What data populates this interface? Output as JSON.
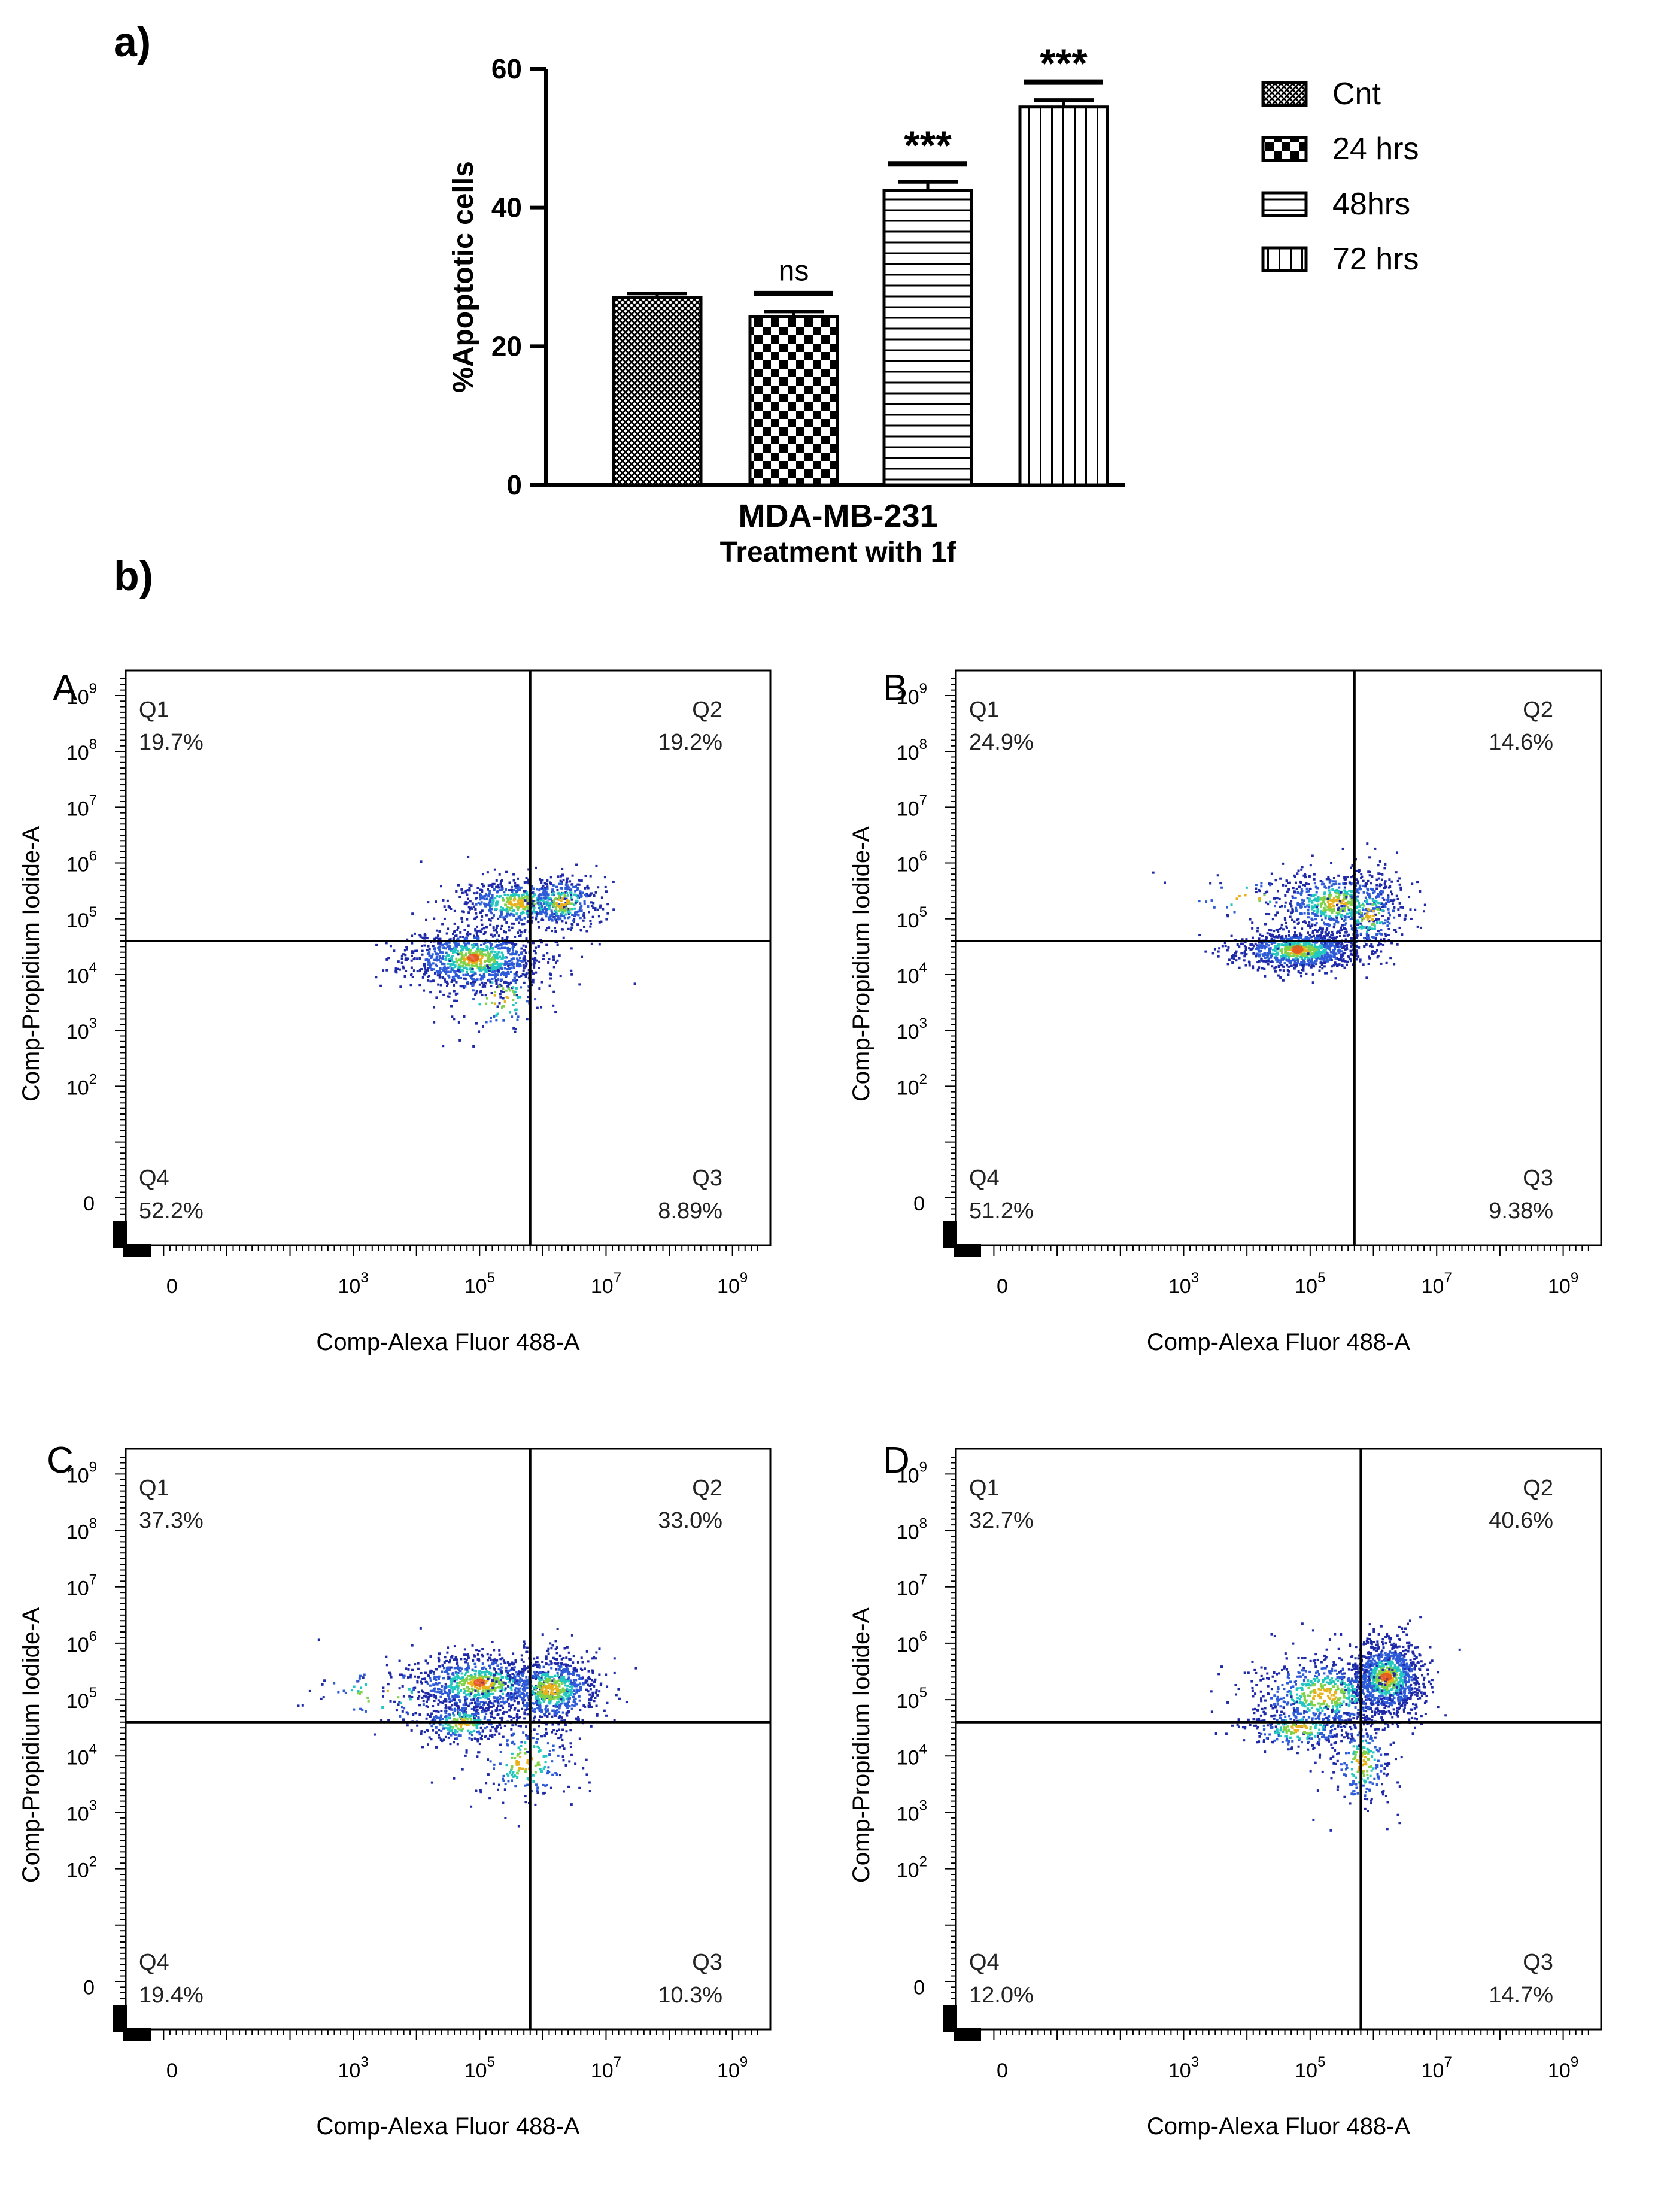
{
  "figure": {
    "panel_a_label": "a)",
    "panel_b_label": "b)",
    "colors": {
      "ink": "#000000",
      "background": "#ffffff"
    }
  },
  "chart_data": [
    {
      "type": "bar",
      "panel": "a)",
      "categories": [
        "Cnt",
        "24 hrs",
        "48hrs",
        "72 hrs"
      ],
      "values": [
        27,
        24.3,
        42.5,
        54.5
      ],
      "errors": [
        0.6,
        0.7,
        1.2,
        1.0
      ],
      "patterns": [
        "crosshatch",
        "checker",
        "horizontal",
        "vertical"
      ],
      "significance": [
        "",
        "ns",
        "***",
        "***"
      ],
      "ylabel": "%Apoptotic cells",
      "xlabel_line1": "MDA-MB-231",
      "xlabel_line2": "Treatment with 1f",
      "ylim": [
        0,
        60
      ],
      "yticks": [
        0,
        20,
        40,
        60
      ],
      "legend": [
        "Cnt",
        "24 hrs",
        "48hrs",
        "72 hrs"
      ],
      "legend_position": "top-right"
    },
    {
      "type": "scatter",
      "panel": "A",
      "xlabel": "Comp-Alexa Fluor 488-A",
      "ylabel": "Comp-Propidium Iodide-A",
      "xticks": [
        "0",
        "10^3",
        "10^5",
        "10^7",
        "10^9"
      ],
      "yticks": [
        "0",
        "10^2",
        "10^3",
        "10^4",
        "10^5",
        "10^6",
        "10^7",
        "10^8",
        "10^9"
      ],
      "gate": {
        "x_decade": 5.8,
        "y_decade": 4.6
      },
      "quadrants": {
        "Q1": "19.7%",
        "Q2": "19.2%",
        "Q3": "8.89%",
        "Q4": "52.2%"
      },
      "populations": [
        {
          "x_decade": 4.9,
          "y_decade": 4.3,
          "count": 950,
          "spread_x": 0.55,
          "spread_y": 0.28
        },
        {
          "x_decade": 5.6,
          "y_decade": 5.3,
          "count": 550,
          "spread_x": 0.5,
          "spread_y": 0.22
        },
        {
          "x_decade": 6.3,
          "y_decade": 5.3,
          "count": 280,
          "spread_x": 0.3,
          "spread_y": 0.25
        },
        {
          "x_decade": 5.3,
          "y_decade": 3.6,
          "count": 120,
          "spread_x": 0.45,
          "spread_y": 0.35
        }
      ]
    },
    {
      "type": "scatter",
      "panel": "B",
      "xlabel": "Comp-Alexa Fluor 488-A",
      "ylabel": "Comp-Propidium Iodide-A",
      "xticks": [
        "0",
        "10^3",
        "10^5",
        "10^7",
        "10^9"
      ],
      "yticks": [
        "0",
        "10^2",
        "10^3",
        "10^4",
        "10^5",
        "10^6",
        "10^7",
        "10^8",
        "10^9"
      ],
      "gate": {
        "x_decade": 5.7,
        "y_decade": 4.6
      },
      "quadrants": {
        "Q1": "24.9%",
        "Q2": "14.6%",
        "Q3": "9.38%",
        "Q4": "51.2%"
      },
      "populations": [
        {
          "x_decade": 4.8,
          "y_decade": 4.45,
          "count": 900,
          "spread_x": 0.5,
          "spread_y": 0.18
        },
        {
          "x_decade": 5.4,
          "y_decade": 5.3,
          "count": 600,
          "spread_x": 0.5,
          "spread_y": 0.3
        },
        {
          "x_decade": 5.9,
          "y_decade": 5.1,
          "count": 220,
          "spread_x": 0.3,
          "spread_y": 0.35
        },
        {
          "x_decade": 4.0,
          "y_decade": 5.4,
          "count": 40,
          "spread_x": 0.6,
          "spread_y": 0.2
        }
      ]
    },
    {
      "type": "scatter",
      "panel": "C",
      "xlabel": "Comp-Alexa Fluor 488-A",
      "ylabel": "Comp-Propidium Iodide-A",
      "xticks": [
        "0",
        "10^3",
        "10^5",
        "10^7",
        "10^9"
      ],
      "yticks": [
        "0",
        "10^2",
        "10^3",
        "10^4",
        "10^5",
        "10^6",
        "10^7",
        "10^8",
        "10^9"
      ],
      "gate": {
        "x_decade": 5.8,
        "y_decade": 4.6
      },
      "quadrants": {
        "Q1": "37.3%",
        "Q2": "33.0%",
        "Q3": "10.3%",
        "Q4": "19.4%"
      },
      "populations": [
        {
          "x_decade": 5.0,
          "y_decade": 5.3,
          "count": 850,
          "spread_x": 0.6,
          "spread_y": 0.28
        },
        {
          "x_decade": 6.1,
          "y_decade": 5.2,
          "count": 700,
          "spread_x": 0.4,
          "spread_y": 0.32
        },
        {
          "x_decade": 4.7,
          "y_decade": 4.6,
          "count": 300,
          "spread_x": 0.35,
          "spread_y": 0.2
        },
        {
          "x_decade": 5.7,
          "y_decade": 3.9,
          "count": 200,
          "spread_x": 0.4,
          "spread_y": 0.4
        },
        {
          "x_decade": 3.4,
          "y_decade": 5.1,
          "count": 60,
          "spread_x": 0.6,
          "spread_y": 0.3
        }
      ]
    },
    {
      "type": "scatter",
      "panel": "D",
      "xlabel": "Comp-Alexa Fluor 488-A",
      "ylabel": "Comp-Propidium Iodide-A",
      "xticks": [
        "0",
        "10^3",
        "10^5",
        "10^7",
        "10^9"
      ],
      "yticks": [
        "0",
        "10^2",
        "10^3",
        "10^4",
        "10^5",
        "10^6",
        "10^7",
        "10^8",
        "10^9"
      ],
      "gate": {
        "x_decade": 5.8,
        "y_decade": 4.6
      },
      "quadrants": {
        "Q1": "32.7%",
        "Q2": "40.6%",
        "Q3": "14.7%",
        "Q4": "12.0%"
      },
      "populations": [
        {
          "x_decade": 6.2,
          "y_decade": 5.4,
          "count": 1000,
          "spread_x": 0.3,
          "spread_y": 0.35
        },
        {
          "x_decade": 5.2,
          "y_decade": 5.1,
          "count": 650,
          "spread_x": 0.6,
          "spread_y": 0.35
        },
        {
          "x_decade": 4.8,
          "y_decade": 4.5,
          "count": 250,
          "spread_x": 0.45,
          "spread_y": 0.2
        },
        {
          "x_decade": 5.8,
          "y_decade": 3.9,
          "count": 220,
          "spread_x": 0.25,
          "spread_y": 0.45
        }
      ]
    }
  ]
}
